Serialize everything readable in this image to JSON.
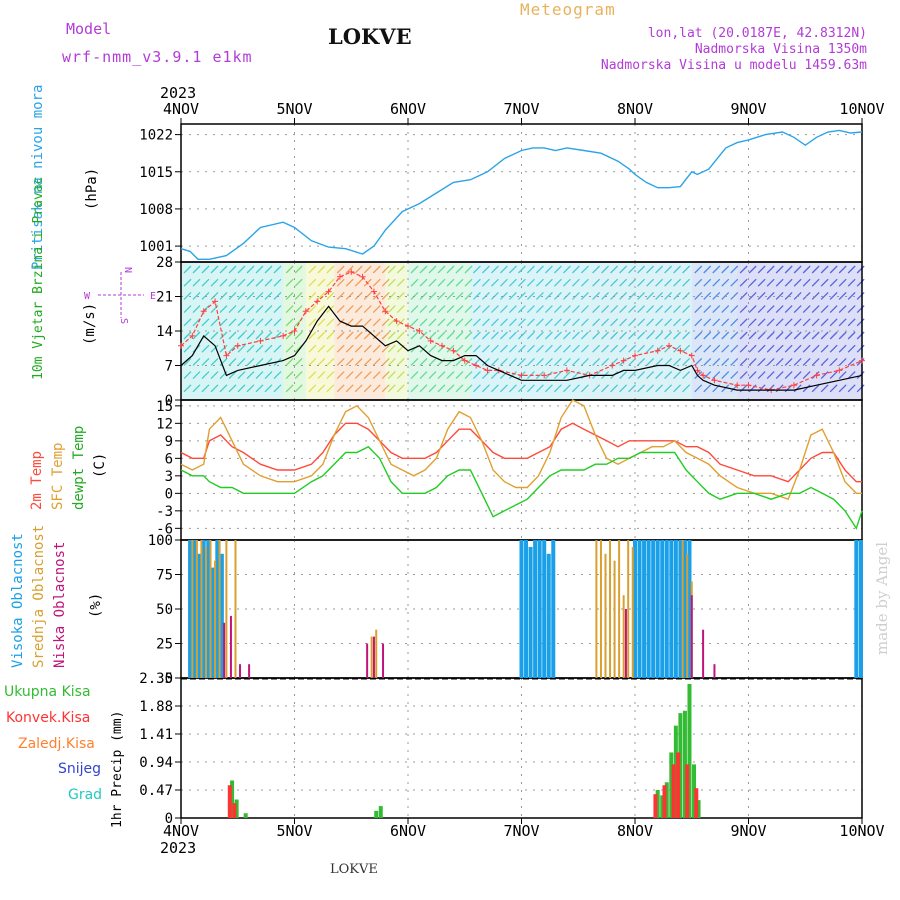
{
  "header": {
    "model_label": "Model",
    "model_name": "wrf-nmm_v3.9.1 e1km",
    "station": "LOKVE",
    "product": "Meteogram",
    "lonlat": "lon,lat (20.0187E, 42.8312N)",
    "elevation": "Nadmorska Visina 1350m",
    "model_elevation": "Nadmorska Visina u modelu 1459.63m"
  },
  "footer": {
    "station": "LOKVE",
    "credit": "made by Angel"
  },
  "colors": {
    "pressure": "#2aa4e8",
    "gust": "#ff4040",
    "wind_mean": "#000000",
    "t2m": "#ff4a3a",
    "sfc": "#e0a030",
    "dew": "#22cc22",
    "high_cloud": "#1aa0e8",
    "mid_cloud": "#d8a030",
    "low_cloud": "#c0147a",
    "total_precip": "#33bb33",
    "conv_precip": "#ff3333",
    "freezing": "#ff8030",
    "snow": "#3344cc",
    "hail": "#22c8c0"
  },
  "chart_data": [
    {
      "type": "line",
      "panel": "pressure",
      "ylabel": "Pritisak na nivou mora",
      "unit": "(hPa)",
      "yticks": [
        "1001",
        "1008",
        "1015",
        "1022"
      ],
      "ylim": [
        998,
        1024
      ],
      "x_days": [
        0.0,
        0.08,
        0.15,
        0.25,
        0.4,
        0.55,
        0.7,
        0.9,
        1.0,
        1.15,
        1.3,
        1.45,
        1.6,
        1.7,
        1.8,
        1.95,
        2.1,
        2.25,
        2.4,
        2.55,
        2.7,
        2.85,
        3.0,
        3.1,
        3.2,
        3.3,
        3.4,
        3.55,
        3.7,
        3.85,
        3.95,
        4.0,
        4.1,
        4.2,
        4.3,
        4.4,
        4.5,
        4.55,
        4.65,
        4.8,
        4.9,
        5.0,
        5.15,
        5.3,
        5.4,
        5.5,
        5.6,
        5.7,
        5.8,
        5.9,
        6.0
      ],
      "values": [
        1000.5,
        1000.0,
        998.5,
        998.5,
        999.2,
        1001.5,
        1004.5,
        1005.5,
        1004.5,
        1002.0,
        1000.8,
        1000.5,
        999.5,
        1001.0,
        1004.0,
        1007.5,
        1009.0,
        1011.0,
        1013.0,
        1013.5,
        1015.0,
        1017.5,
        1019.0,
        1019.5,
        1019.5,
        1019.0,
        1019.5,
        1019.0,
        1018.5,
        1017.0,
        1015.5,
        1014.5,
        1013.0,
        1012.0,
        1012.0,
        1012.2,
        1015.0,
        1014.5,
        1015.5,
        1019.5,
        1020.5,
        1021.0,
        1022.0,
        1022.5,
        1021.5,
        1020.0,
        1021.5,
        1022.5,
        1022.8,
        1022.3,
        1022.5
      ]
    },
    {
      "type": "line",
      "panel": "wind",
      "ylabel": "10m Vjetar Brzina i Pravac",
      "unit": "(m/s)",
      "yticks": [
        "0",
        "7",
        "14",
        "21",
        "28"
      ],
      "ylim": [
        0,
        28
      ],
      "compass": [
        "N",
        "S",
        "E",
        "W"
      ],
      "x_days": [
        0.0,
        0.1,
        0.2,
        0.3,
        0.4,
        0.5,
        0.7,
        0.9,
        1.0,
        1.1,
        1.2,
        1.3,
        1.4,
        1.5,
        1.6,
        1.7,
        1.8,
        1.9,
        2.0,
        2.1,
        2.2,
        2.3,
        2.4,
        2.5,
        2.6,
        2.7,
        2.8,
        3.0,
        3.2,
        3.4,
        3.6,
        3.8,
        3.9,
        4.0,
        4.2,
        4.3,
        4.4,
        4.5,
        4.55,
        4.6,
        4.7,
        4.9,
        5.0,
        5.2,
        5.4,
        5.6,
        5.8,
        6.0
      ],
      "series": [
        {
          "name": "gust",
          "values": [
            11,
            13,
            18,
            20,
            9,
            11,
            12,
            13,
            14,
            18,
            20,
            22,
            25,
            26,
            25,
            22,
            18,
            16,
            15,
            14,
            12,
            11,
            10,
            8,
            7,
            6,
            6,
            5,
            5,
            6,
            5,
            7,
            8,
            9,
            10,
            11,
            10,
            9,
            6,
            5,
            4,
            3,
            3,
            2,
            3,
            5,
            6,
            8
          ]
        },
        {
          "name": "mean",
          "values": [
            7,
            9,
            13,
            11,
            5,
            6,
            7,
            8,
            9,
            12,
            16,
            19,
            16,
            15,
            15,
            13,
            11,
            12,
            10,
            11,
            9,
            8,
            8,
            9,
            9,
            7,
            6,
            4,
            4,
            4,
            5,
            5,
            6,
            6,
            7,
            7,
            6,
            7,
            5,
            4,
            3,
            2,
            2,
            2,
            2,
            3,
            4,
            5
          ]
        }
      ]
    },
    {
      "type": "line",
      "panel": "temperature",
      "ylabel_lines": [
        "2m Temp",
        "SFC Temp",
        "dewpt Temp"
      ],
      "unit": "(C)",
      "yticks": [
        "-6",
        "-3",
        "0",
        "3",
        "6",
        "9",
        "12",
        "15"
      ],
      "ylim": [
        -8,
        16
      ],
      "x_days": [
        0.0,
        0.1,
        0.2,
        0.25,
        0.35,
        0.45,
        0.55,
        0.7,
        0.85,
        1.0,
        1.15,
        1.25,
        1.35,
        1.45,
        1.55,
        1.65,
        1.75,
        1.85,
        1.95,
        2.05,
        2.15,
        2.25,
        2.35,
        2.45,
        2.55,
        2.65,
        2.75,
        2.85,
        2.95,
        3.05,
        3.15,
        3.25,
        3.35,
        3.45,
        3.55,
        3.65,
        3.75,
        3.85,
        3.95,
        4.05,
        4.15,
        4.25,
        4.35,
        4.45,
        4.55,
        4.65,
        4.75,
        4.9,
        5.05,
        5.2,
        5.35,
        5.45,
        5.55,
        5.65,
        5.75,
        5.85,
        5.95,
        6.0
      ],
      "series": [
        {
          "name": "2m Temp",
          "values": [
            7,
            6,
            6,
            9,
            10,
            8,
            7,
            5,
            4,
            4,
            5,
            7,
            10,
            12,
            12,
            11,
            9,
            7,
            6,
            6,
            6,
            7,
            9,
            11,
            11,
            9,
            7,
            6,
            6,
            6,
            7,
            8,
            11,
            12,
            11,
            10,
            9,
            8,
            9,
            9,
            9,
            9,
            9,
            8,
            8,
            7,
            5,
            4,
            3,
            3,
            2,
            4,
            6,
            7,
            7,
            4,
            2,
            2
          ]
        },
        {
          "name": "SFC Temp",
          "values": [
            5,
            4,
            5,
            11,
            13,
            9,
            5,
            3,
            2,
            2,
            3,
            5,
            10,
            14,
            15,
            13,
            9,
            5,
            4,
            3,
            4,
            6,
            11,
            14,
            13,
            9,
            4,
            2,
            1,
            1,
            3,
            7,
            13,
            16,
            15,
            10,
            6,
            5,
            6,
            7,
            8,
            8,
            9,
            7,
            6,
            5,
            3,
            1,
            0,
            0,
            -1,
            4,
            10,
            11,
            7,
            2,
            0,
            0
          ]
        },
        {
          "name": "dewpt Temp",
          "values": [
            4,
            3,
            3,
            2,
            1,
            1,
            0,
            0,
            0,
            0,
            2,
            3,
            5,
            7,
            7,
            8,
            6,
            2,
            0,
            0,
            0,
            1,
            3,
            4,
            4,
            0,
            -4,
            -3,
            -2,
            -1,
            1,
            3,
            4,
            4,
            4,
            5,
            5,
            6,
            6,
            7,
            7,
            7,
            7,
            4,
            2,
            0,
            -1,
            0,
            0,
            -1,
            0,
            0,
            1,
            0,
            -1,
            -3,
            -6,
            -3
          ]
        }
      ]
    },
    {
      "type": "bar",
      "panel": "clouds",
      "ylabel_lines": [
        "Visoka Oblacnost",
        "Srednja Oblacnost",
        "Niska Oblacnost"
      ],
      "unit": "(%)",
      "yticks": [
        "0",
        "25",
        "50",
        "75",
        "100"
      ],
      "ylim": [
        0,
        100
      ],
      "series": [
        {
          "name": "Visoka Oblacnost",
          "x_days": [
            0.08,
            0.12,
            0.16,
            0.2,
            0.24,
            0.28,
            0.32,
            0.36,
            3.0,
            3.04,
            3.08,
            3.12,
            3.16,
            3.2,
            3.24,
            3.28,
            4.0,
            4.04,
            4.08,
            4.12,
            4.16,
            4.2,
            4.24,
            4.28,
            4.32,
            4.36,
            4.4,
            4.44,
            4.48,
            5.95,
            5.99
          ],
          "values": [
            100,
            100,
            90,
            100,
            100,
            80,
            100,
            90,
            100,
            100,
            95,
            100,
            100,
            100,
            90,
            100,
            100,
            100,
            100,
            100,
            100,
            100,
            100,
            100,
            100,
            100,
            100,
            100,
            100,
            100,
            100
          ]
        },
        {
          "name": "Srednja Oblacnost",
          "x_days": [
            0.1,
            0.14,
            0.18,
            0.22,
            0.26,
            0.3,
            0.34,
            0.4,
            0.48,
            1.68,
            1.72,
            3.66,
            3.7,
            3.74,
            3.78,
            3.82,
            3.86,
            3.9,
            3.94,
            3.98,
            4.42,
            4.46,
            4.5
          ],
          "values": [
            100,
            100,
            100,
            95,
            100,
            85,
            100,
            100,
            100,
            30,
            35,
            100,
            100,
            90,
            100,
            85,
            100,
            60,
            100,
            95,
            100,
            90,
            70
          ]
        },
        {
          "name": "Niska Oblacnost",
          "x_days": [
            0.38,
            0.44,
            0.52,
            0.6,
            1.64,
            1.7,
            1.78,
            3.92,
            4.5,
            4.6,
            4.7
          ],
          "values": [
            40,
            45,
            10,
            10,
            25,
            30,
            25,
            50,
            60,
            35,
            10
          ]
        }
      ]
    },
    {
      "type": "bar",
      "panel": "precipitation",
      "ylabel": "1hr Precip (mm)",
      "legend": [
        "Ukupna Kisa",
        "Konvek.Kisa",
        "Zaledj.Kisa",
        "Snijeg",
        "Grad"
      ],
      "yticks": [
        "0",
        "0.47",
        "0.94",
        "1.41",
        "1.88",
        "2.35"
      ],
      "ylim": [
        0,
        2.35
      ],
      "series": [
        {
          "name": "Ukupna Kisa",
          "x_days": [
            0.45,
            0.49,
            0.57,
            1.72,
            1.76,
            4.2,
            4.24,
            4.28,
            4.32,
            4.36,
            4.4,
            4.44,
            4.48,
            4.52,
            4.56
          ],
          "values": [
            0.63,
            0.31,
            0.08,
            0.12,
            0.2,
            0.47,
            0.38,
            0.6,
            1.1,
            1.55,
            1.76,
            1.8,
            2.25,
            0.9,
            0.3
          ]
        },
        {
          "name": "Konvek.Kisa",
          "x_days": [
            0.43,
            0.47,
            4.18,
            4.26,
            4.34,
            4.38,
            4.46,
            4.54
          ],
          "values": [
            0.55,
            0.25,
            0.4,
            0.55,
            0.9,
            1.1,
            0.9,
            0.5
          ]
        }
      ]
    }
  ],
  "x_axis": {
    "year_top": "2023",
    "year_bottom": "2023",
    "days": [
      "4NOV",
      "5NOV",
      "6NOV",
      "7NOV",
      "8NOV",
      "9NOV",
      "10NOV"
    ]
  }
}
